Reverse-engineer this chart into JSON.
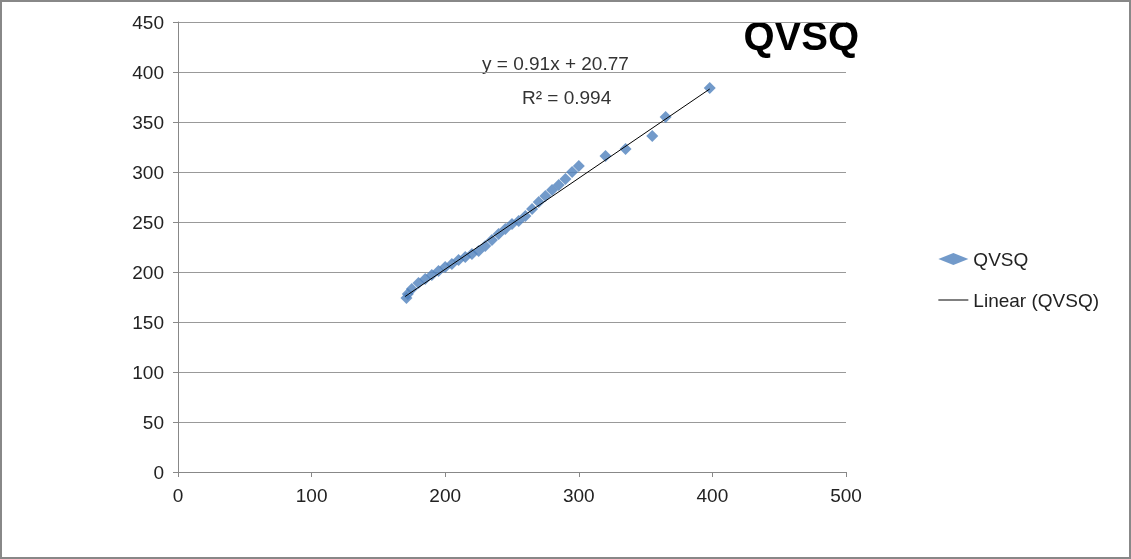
{
  "chart_data": {
    "type": "scatter",
    "title": "QVSQ",
    "xlim": [
      0,
      500
    ],
    "xticks": [
      0,
      100,
      200,
      300,
      400,
      500
    ],
    "ylim": [
      0,
      450
    ],
    "yticks": [
      0,
      50,
      100,
      150,
      200,
      250,
      300,
      350,
      400,
      450
    ],
    "grid": "y",
    "legend": "right",
    "marker": "diamond",
    "annotations": [
      "y = 0.91x + 20.77",
      "R² = 0.994"
    ],
    "series": [
      {
        "name": "QVSQ",
        "color": "#4f81bd",
        "x": [
          171,
          172,
          175,
          180,
          185,
          190,
          195,
          200,
          205,
          210,
          215,
          220,
          225,
          230,
          235,
          240,
          245,
          250,
          255,
          260,
          265,
          270,
          275,
          280,
          285,
          290,
          295,
          300,
          320,
          335,
          355,
          365,
          398
        ],
        "values": [
          174,
          178,
          183,
          189,
          193,
          197,
          201,
          205,
          208,
          212,
          215,
          218,
          221,
          226,
          232,
          238,
          243,
          248,
          251,
          256,
          263,
          270,
          276,
          282,
          287,
          293,
          300,
          306,
          316,
          323,
          336,
          355,
          384
        ]
      },
      {
        "name": "Linear (QVSQ)",
        "type": "line",
        "color": "#000000",
        "marker": "none",
        "x": [
          170,
          398
        ],
        "values": [
          175.5,
          383
        ]
      }
    ]
  }
}
